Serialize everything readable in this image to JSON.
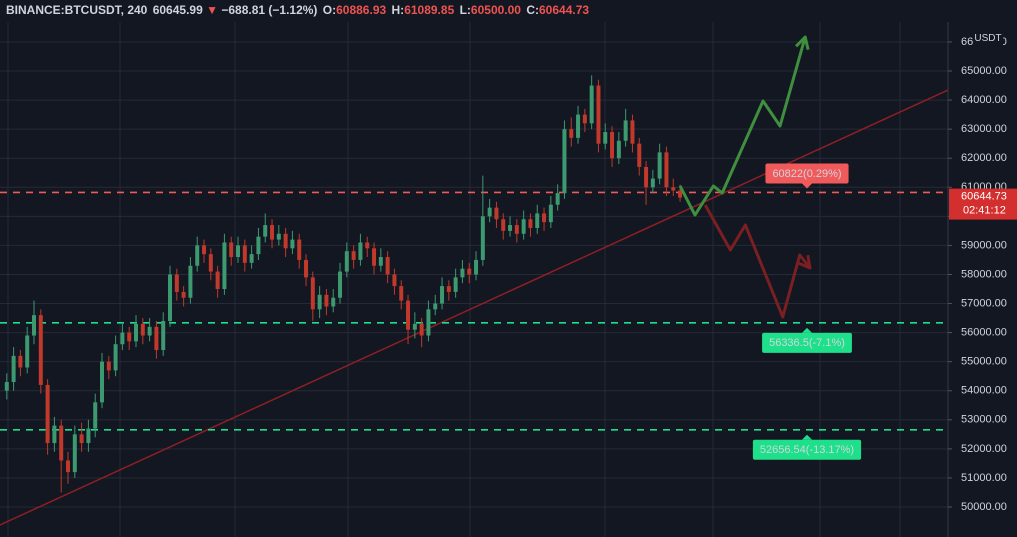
{
  "header": {
    "symbol": "BINANCE:BTCUSDT, 240",
    "price": "60645.99",
    "change": "−688.81 (−1.12%)",
    "ohlc": [
      {
        "key": "O:",
        "value": "60886.93"
      },
      {
        "key": "H:",
        "value": "61089.85"
      },
      {
        "key": "L:",
        "value": "60500.00"
      },
      {
        "key": "C:",
        "value": "60644.73"
      }
    ]
  },
  "chart_data": {
    "type": "candlestick",
    "currency": "USDT",
    "up_color": "#3d9970",
    "down_color": "#c0392b",
    "xlim": [
      -1,
      138.4
    ],
    "ylim": [
      48968,
      66686
    ],
    "yticks": [
      {
        "value": 50000,
        "label": "50000.00"
      },
      {
        "value": 51000,
        "label": "51000.00"
      },
      {
        "value": 52000,
        "label": "52000.00"
      },
      {
        "value": 53000,
        "label": "53000.00"
      },
      {
        "value": 54000,
        "label": "54000.00"
      },
      {
        "value": 55000,
        "label": "55000.00"
      },
      {
        "value": 56000,
        "label": "56000.00"
      },
      {
        "value": 57000,
        "label": "57000.00"
      },
      {
        "value": 58000,
        "label": "58000.00"
      },
      {
        "value": 59000,
        "label": "59000.00"
      },
      {
        "value": 60000,
        "label": "60000.00"
      },
      {
        "value": 61000,
        "label": "61000.00"
      },
      {
        "value": 62000,
        "label": "62000.00"
      },
      {
        "value": 63000,
        "label": "63000.00"
      },
      {
        "value": 64000,
        "label": "64000.00"
      },
      {
        "value": 65000,
        "label": "65000.00"
      },
      {
        "value": 66000,
        "label": "66000.00"
      }
    ],
    "grid": true,
    "candles": [
      [
        54000,
        54600,
        53700,
        54300
      ],
      [
        54300,
        55500,
        54000,
        55200
      ],
      [
        55200,
        55400,
        54500,
        54800
      ],
      [
        54800,
        56200,
        54600,
        55900
      ],
      [
        55900,
        57100,
        55600,
        56600
      ],
      [
        56600,
        56800,
        53900,
        54200
      ],
      [
        54200,
        54400,
        51800,
        52200
      ],
      [
        52200,
        53100,
        51900,
        52800
      ],
      [
        52800,
        53000,
        50500,
        51600
      ],
      [
        51600,
        51900,
        50800,
        51200
      ],
      [
        51200,
        52800,
        51000,
        52500
      ],
      [
        52500,
        52900,
        51900,
        52200
      ],
      [
        52200,
        53000,
        51900,
        52700
      ],
      [
        52700,
        53900,
        52400,
        53600
      ],
      [
        53600,
        55300,
        53400,
        55000
      ],
      [
        55000,
        55200,
        54400,
        54700
      ],
      [
        54700,
        55900,
        54500,
        55600
      ],
      [
        55600,
        56300,
        55400,
        56000
      ],
      [
        56000,
        56200,
        55400,
        55700
      ],
      [
        55700,
        56600,
        55500,
        56300
      ],
      [
        56300,
        56500,
        55600,
        55900
      ],
      [
        55900,
        56500,
        55700,
        56200
      ],
      [
        56200,
        56400,
        55100,
        55400
      ],
      [
        55400,
        56700,
        55200,
        56400
      ],
      [
        56400,
        58300,
        56200,
        58000
      ],
      [
        58000,
        58200,
        57100,
        57400
      ],
      [
        57400,
        57600,
        56900,
        57200
      ],
      [
        57200,
        58600,
        57000,
        58300
      ],
      [
        58300,
        59300,
        58100,
        59000
      ],
      [
        59000,
        59200,
        58400,
        58700
      ],
      [
        58700,
        58900,
        57800,
        58100
      ],
      [
        58100,
        58300,
        57200,
        57500
      ],
      [
        57500,
        59400,
        57300,
        59100
      ],
      [
        59100,
        59300,
        58300,
        58600
      ],
      [
        58600,
        59300,
        58400,
        59000
      ],
      [
        59000,
        59200,
        58100,
        58400
      ],
      [
        58400,
        59000,
        58200,
        58700
      ],
      [
        58700,
        59600,
        58500,
        59300
      ],
      [
        59300,
        60100,
        59100,
        59700
      ],
      [
        59700,
        59900,
        58900,
        59200
      ],
      [
        59200,
        59700,
        59000,
        59400
      ],
      [
        59400,
        59600,
        58600,
        58900
      ],
      [
        58900,
        59500,
        58700,
        59200
      ],
      [
        59200,
        59400,
        58200,
        58500
      ],
      [
        58500,
        58700,
        57600,
        57900
      ],
      [
        57900,
        58100,
        56400,
        56800
      ],
      [
        56800,
        57600,
        56500,
        57300
      ],
      [
        57300,
        57500,
        56600,
        56900
      ],
      [
        56900,
        57500,
        56700,
        57200
      ],
      [
        57200,
        58400,
        57000,
        58100
      ],
      [
        58100,
        59100,
        57900,
        58800
      ],
      [
        58800,
        59000,
        58200,
        58500
      ],
      [
        58500,
        59400,
        58300,
        59100
      ],
      [
        59100,
        59300,
        58600,
        58900
      ],
      [
        58900,
        59100,
        58000,
        58300
      ],
      [
        58300,
        58900,
        58100,
        58600
      ],
      [
        58600,
        58800,
        57700,
        58000
      ],
      [
        58000,
        58200,
        57300,
        57600
      ],
      [
        57600,
        57800,
        56800,
        57100
      ],
      [
        57100,
        57300,
        55600,
        56100
      ],
      [
        56100,
        56700,
        55800,
        56300
      ],
      [
        56300,
        56500,
        55500,
        55900
      ],
      [
        55900,
        57100,
        55700,
        56800
      ],
      [
        56800,
        57300,
        56600,
        57000
      ],
      [
        57000,
        57900,
        56800,
        57600
      ],
      [
        57600,
        57800,
        57100,
        57400
      ],
      [
        57400,
        58200,
        57200,
        57900
      ],
      [
        57900,
        58500,
        57700,
        58200
      ],
      [
        58200,
        58400,
        57700,
        58000
      ],
      [
        58000,
        58800,
        57800,
        58500
      ],
      [
        58500,
        61400,
        58300,
        60000
      ],
      [
        60000,
        60600,
        59800,
        60300
      ],
      [
        60300,
        60500,
        59600,
        59900
      ],
      [
        59900,
        60100,
        59200,
        59500
      ],
      [
        59500,
        60000,
        59300,
        59700
      ],
      [
        59700,
        59900,
        59100,
        59400
      ],
      [
        59400,
        60200,
        59200,
        59900
      ],
      [
        59900,
        60100,
        59300,
        59600
      ],
      [
        59600,
        60400,
        59400,
        60100
      ],
      [
        60100,
        60300,
        59500,
        59800
      ],
      [
        59800,
        60700,
        59600,
        60400
      ],
      [
        60400,
        61100,
        60200,
        60800
      ],
      [
        60800,
        63300,
        60600,
        63000
      ],
      [
        63000,
        63400,
        62400,
        62700
      ],
      [
        62700,
        63800,
        62500,
        63500
      ],
      [
        63500,
        63700,
        62900,
        63200
      ],
      [
        63200,
        64850,
        63000,
        64500
      ],
      [
        64500,
        64700,
        62200,
        62500
      ],
      [
        62500,
        63200,
        62300,
        62900
      ],
      [
        62900,
        63100,
        61700,
        62000
      ],
      [
        62000,
        62900,
        61800,
        62600
      ],
      [
        62600,
        63700,
        62400,
        63300
      ],
      [
        63300,
        63500,
        62200,
        62500
      ],
      [
        62500,
        62700,
        61400,
        61700
      ],
      [
        61700,
        61900,
        60400,
        61000
      ],
      [
        61000,
        61600,
        60800,
        61300
      ],
      [
        61300,
        62500,
        61100,
        62200
      ],
      [
        62200,
        62400,
        60700,
        61000
      ],
      [
        61000,
        61300,
        60700,
        60886.93
      ],
      [
        60886.93,
        61089.85,
        60500,
        60644.73
      ]
    ],
    "levels": [
      {
        "value": 60822,
        "label": "60822(0.29%)",
        "color": "#f05a5a",
        "side": "above"
      },
      {
        "value": 56336.5,
        "label": "56336.5(-7.1%)",
        "color": "#1ee08a",
        "side": "below"
      },
      {
        "value": 52656.54,
        "label": "52656.54(-13.17%)",
        "color": "#1ee08a",
        "side": "below"
      }
    ],
    "trendline": {
      "x": [
        -1,
        138.4
      ],
      "values": [
        49383,
        64346
      ],
      "color": "#8e1f25"
    },
    "projections": [
      {
        "color": "#3f8f3f",
        "x": [
          99,
          101.2,
          103.9,
          105.2,
          111.2,
          113.7,
          117.4
        ],
        "values": [
          61044,
          60046,
          61044,
          60803,
          63968,
          63108,
          66170
        ]
      },
      {
        "color": "#7a1f22",
        "x": [
          102.7,
          106.4,
          108.6,
          114.1,
          116.6,
          118.1
        ],
        "values": [
          60391,
          58843,
          59703,
          56538,
          58670,
          58223
        ]
      }
    ],
    "last_price": {
      "value": 60644.73,
      "countdown": "02:41:12",
      "color": "#d32f2f"
    }
  }
}
